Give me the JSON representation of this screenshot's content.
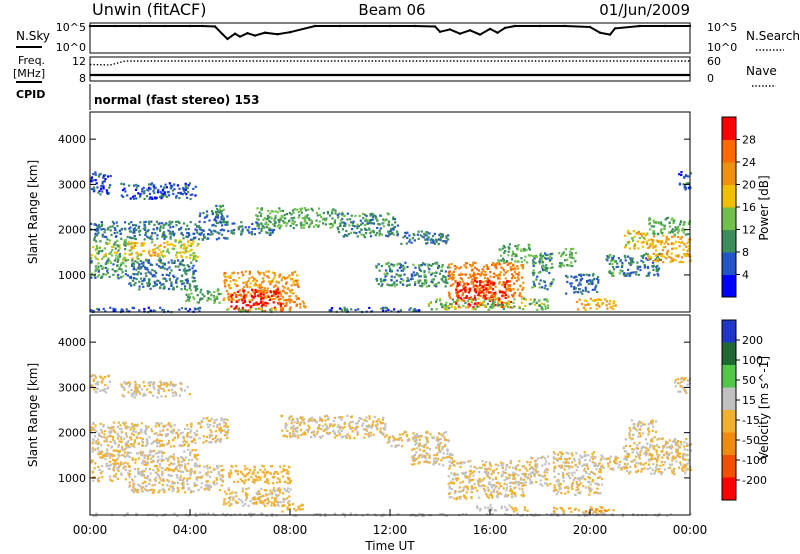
{
  "header": {
    "station": "Unwin (fitACF)",
    "beam": "Beam 06",
    "date": "01/Jun/2009"
  },
  "chart_data": [
    {
      "type": "line",
      "panel": "noise",
      "left_label": "N.Sky",
      "right_label": "N.Search",
      "yticks_left": [
        "10^5",
        "10^0"
      ],
      "yticks_right": [
        "10^5",
        "10^0"
      ],
      "ylim": [
        0,
        5
      ],
      "x": [
        0,
        1,
        2,
        3,
        4,
        4.5,
        5,
        5.3,
        5.5,
        5.8,
        6,
        6.3,
        6.6,
        7,
        7.5,
        8,
        9,
        10,
        11,
        12,
        13,
        13.8,
        14,
        14.4,
        14.8,
        15.2,
        15.6,
        16,
        16.3,
        16.6,
        17,
        18,
        19,
        20,
        20.4,
        20.8,
        21,
        22,
        23,
        24
      ],
      "values": [
        5,
        5,
        5,
        5,
        5,
        5,
        4.9,
        3.3,
        2.3,
        3.4,
        2.8,
        3.5,
        3.0,
        3.6,
        3.3,
        3.7,
        5,
        5,
        5,
        5,
        5,
        4.9,
        3.8,
        4.3,
        3.4,
        4.1,
        3.2,
        4.4,
        3.6,
        4.6,
        5,
        5,
        5,
        4.8,
        3.6,
        3.2,
        4.5,
        5,
        5,
        5
      ]
    },
    {
      "type": "line",
      "panel": "frequency",
      "left_label": "Freq.",
      "left_unit": "[MHz]",
      "right_label": "Nave",
      "yticks_left": [
        "12",
        "8"
      ],
      "yticks_right": [
        "60",
        "0"
      ],
      "ylim": [
        8,
        12
      ],
      "series": [
        {
          "name": "Freq.",
          "x": [
            0,
            24
          ],
          "values": [
            8.8,
            8.8
          ]
        },
        {
          "name": "Nave",
          "x": [
            0,
            0.8,
            1.4,
            24
          ],
          "values": [
            10.9,
            10.8,
            11.6,
            11.6
          ]
        }
      ]
    },
    {
      "type": "heatmap",
      "panel": "power",
      "ylabel": "Slant Range [km]",
      "yticks": [
        "1000",
        "2000",
        "3000",
        "4000"
      ],
      "ylim": [
        180,
        4600
      ],
      "xlim": [
        0,
        24
      ],
      "colorbar_label": "Power [dB]",
      "colorbar_ticks": [
        "4",
        "8",
        "12",
        "16",
        "20",
        "24",
        "28"
      ],
      "colorbar_colors": [
        "#0000ff",
        "#2455c8",
        "#3b8e5a",
        "#6fc04c",
        "#f0c000",
        "#f09010",
        "#ff6a00",
        "#ff0000"
      ],
      "clim": [
        0,
        32
      ],
      "cells": [
        [
          0,
          1.5,
          1350,
          1800,
          14
        ],
        [
          1.5,
          3,
          1350,
          1750,
          18
        ],
        [
          3,
          4.3,
          1350,
          1800,
          16
        ],
        [
          0,
          4.3,
          1800,
          2200,
          8
        ],
        [
          0,
          1.5,
          950,
          1350,
          10
        ],
        [
          1.5,
          4.3,
          700,
          1350,
          8
        ],
        [
          0,
          0.8,
          2800,
          3300,
          6
        ],
        [
          1.2,
          4.2,
          2700,
          3050,
          6
        ],
        [
          3.8,
          5.2,
          400,
          700,
          12
        ],
        [
          4.3,
          5.5,
          1800,
          2450,
          8
        ],
        [
          5.0,
          5.4,
          2150,
          2600,
          10
        ],
        [
          5.3,
          8.3,
          450,
          1100,
          22
        ],
        [
          5.6,
          7.6,
          220,
          700,
          30
        ],
        [
          7.6,
          8.6,
          220,
          500,
          24
        ],
        [
          5.6,
          7.4,
          1900,
          2200,
          8
        ],
        [
          6.6,
          9.8,
          2050,
          2500,
          12
        ],
        [
          9.8,
          12.3,
          1850,
          2400,
          10
        ],
        [
          12.3,
          14.3,
          1700,
          2000,
          8
        ],
        [
          11.4,
          14.3,
          750,
          1300,
          10
        ],
        [
          14.3,
          17.3,
          500,
          1300,
          24
        ],
        [
          14.6,
          16.8,
          300,
          900,
          30
        ],
        [
          13.5,
          18.3,
          250,
          500,
          14
        ],
        [
          16.3,
          17.6,
          1300,
          1700,
          12
        ],
        [
          17.6,
          18.5,
          700,
          1500,
          10
        ],
        [
          18.7,
          19.4,
          1200,
          1600,
          12
        ],
        [
          19.0,
          20.3,
          600,
          1050,
          8
        ],
        [
          19.4,
          21.0,
          250,
          500,
          20
        ],
        [
          20.6,
          21.3,
          1000,
          1500,
          10
        ],
        [
          21.3,
          22.8,
          1000,
          1500,
          8
        ],
        [
          21.3,
          22.3,
          1600,
          2000,
          18
        ],
        [
          22.3,
          24,
          1300,
          1900,
          20
        ],
        [
          22.3,
          24,
          1900,
          2300,
          12
        ],
        [
          23.5,
          24,
          2900,
          3300,
          6
        ],
        [
          5.4,
          7.4,
          200,
          300,
          14
        ],
        [
          9.5,
          13.2,
          200,
          300,
          6
        ],
        [
          0,
          4.5,
          200,
          300,
          6
        ]
      ]
    },
    {
      "type": "heatmap",
      "panel": "velocity",
      "ylabel": "Slant Range [km]",
      "yticks": [
        "1000",
        "2000",
        "3000",
        "4000"
      ],
      "ylim": [
        180,
        4600
      ],
      "xlim": [
        0,
        24
      ],
      "xlabel": "Time UT",
      "xticks": [
        "00:00",
        "04:00",
        "08:00",
        "12:00",
        "16:00",
        "20:00",
        "00:00"
      ],
      "colorbar_label": "Velocity [m s^-1]",
      "colorbar_ticks": [
        "200",
        "100",
        "50",
        "15",
        "-15",
        "-50",
        "-100",
        "-200"
      ],
      "colorbar_colors": [
        "#2036c8",
        "#1f6a30",
        "#52c84a",
        "#c0c0c0",
        "#f0b030",
        "#f08a10",
        "#f05000",
        "#ff0000"
      ],
      "clim": [
        -250,
        250
      ],
      "cells": [
        [
          0,
          4.3,
          1700,
          2250,
          0
        ],
        [
          0,
          1.5,
          950,
          1700,
          0
        ],
        [
          1.5,
          4.3,
          700,
          1650,
          0
        ],
        [
          0,
          0.8,
          2900,
          3300,
          0
        ],
        [
          1.2,
          4.0,
          2800,
          3150,
          0
        ],
        [
          4.3,
          5.3,
          750,
          1300,
          0
        ],
        [
          4.3,
          5.5,
          1800,
          2350,
          0
        ],
        [
          5.5,
          8.0,
          900,
          1300,
          -30
        ],
        [
          5.3,
          8.0,
          400,
          800,
          0
        ],
        [
          7.6,
          11.8,
          1900,
          2400,
          0
        ],
        [
          11.8,
          14.3,
          1700,
          2050,
          0
        ],
        [
          12.8,
          14.6,
          1300,
          1700,
          0
        ],
        [
          14.3,
          17.3,
          550,
          1400,
          0
        ],
        [
          17.3,
          18.4,
          850,
          1500,
          0
        ],
        [
          18.5,
          20.5,
          650,
          1600,
          0
        ],
        [
          20.5,
          21.5,
          1200,
          1500,
          0
        ],
        [
          21.3,
          24,
          1100,
          1900,
          0
        ],
        [
          21.5,
          22.6,
          1900,
          2300,
          0
        ],
        [
          23.3,
          24,
          2900,
          3250,
          0
        ],
        [
          6.5,
          7.5,
          400,
          600,
          -35
        ],
        [
          7.6,
          8.5,
          280,
          450,
          -30
        ],
        [
          15.4,
          16.8,
          300,
          420,
          40
        ],
        [
          16.8,
          17.6,
          280,
          380,
          -30
        ],
        [
          18.5,
          20.5,
          250,
          380,
          -30
        ],
        [
          19.6,
          21.0,
          250,
          330,
          -70
        ],
        [
          0,
          24,
          180,
          240,
          30
        ]
      ]
    }
  ],
  "cpid": {
    "label": "CPID",
    "text": "normal (fast stereo) 153"
  },
  "colors": {
    "frame": "#000000",
    "background": "#ffffff"
  }
}
